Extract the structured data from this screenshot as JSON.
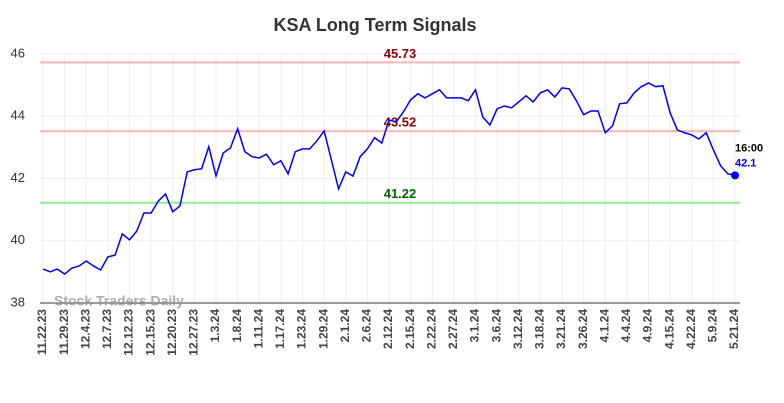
{
  "chart_data": {
    "type": "line",
    "title": "KSA Long Term Signals",
    "categories": [
      "11.22.23",
      null,
      null,
      "11.29.23",
      null,
      null,
      "12.4.23",
      null,
      null,
      "12.7.23",
      null,
      null,
      "12.12.23",
      null,
      null,
      "12.15.23",
      null,
      null,
      "12.20.23",
      null,
      null,
      "12.27.23",
      null,
      null,
      "1.3.24",
      null,
      null,
      "1.8.24",
      null,
      null,
      "1.11.24",
      null,
      null,
      "1.17.24",
      null,
      null,
      "1.23.24",
      null,
      null,
      "1.29.24",
      null,
      null,
      "2.1.24",
      null,
      null,
      "2.6.24",
      null,
      null,
      "2.12.24",
      null,
      null,
      "2.15.24",
      null,
      null,
      "2.22.24",
      null,
      null,
      "2.27.24",
      null,
      null,
      "3.1.24",
      null,
      null,
      "3.6.24",
      null,
      null,
      "3.12.24",
      null,
      null,
      "3.18.24",
      null,
      null,
      "3.21.24",
      null,
      null,
      "3.26.24",
      null,
      null,
      "4.1.24",
      null,
      null,
      "4.4.24",
      null,
      null,
      "4.9.24",
      null,
      null,
      "4.15.24",
      null,
      null,
      "4.22.24",
      null,
      null,
      "5.9.24",
      null,
      null,
      "5.21.24"
    ],
    "series": [
      {
        "name": "KSA",
        "color": "#0000ee",
        "values": [
          39.09,
          39.0,
          39.09,
          38.93,
          39.12,
          39.19,
          39.35,
          39.19,
          39.06,
          39.48,
          39.54,
          40.22,
          40.03,
          40.31,
          40.89,
          40.89,
          41.28,
          41.5,
          40.93,
          41.12,
          42.21,
          42.28,
          42.31,
          43.02,
          42.08,
          42.82,
          42.98,
          43.6,
          42.86,
          42.7,
          42.66,
          42.78,
          42.44,
          42.57,
          42.15,
          42.86,
          42.95,
          42.95,
          43.21,
          43.53,
          42.6,
          41.67,
          42.21,
          42.08,
          42.7,
          42.95,
          43.31,
          43.14,
          43.88,
          43.82,
          44.14,
          44.53,
          44.72,
          44.59,
          44.72,
          44.85,
          44.59,
          44.59,
          44.59,
          44.5,
          44.85,
          43.98,
          43.72,
          44.24,
          44.33,
          44.27,
          44.46,
          44.66,
          44.46,
          44.75,
          44.85,
          44.62,
          44.91,
          44.88,
          44.5,
          44.05,
          44.17,
          44.17,
          43.47,
          43.69,
          44.4,
          44.43,
          44.75,
          44.95,
          45.07,
          44.95,
          44.98,
          44.11,
          43.56,
          43.47,
          43.4,
          43.27,
          43.47,
          42.92,
          42.41,
          42.15,
          42.1
        ]
      }
    ],
    "hlines": [
      {
        "value": 45.73,
        "color": "#ffb3b3",
        "label_color": "#8b0000"
      },
      {
        "value": 43.52,
        "color": "#ffb3b3",
        "label_color": "#8b0000"
      },
      {
        "value": 41.22,
        "color": "#90ee90",
        "label_color": "#006400"
      }
    ],
    "last_time": "16:00",
    "watermark": "Stock Traders Daily",
    "ylim": [
      38,
      46
    ],
    "yticks": [
      38,
      40,
      42,
      44,
      46
    ],
    "grid": true
  }
}
